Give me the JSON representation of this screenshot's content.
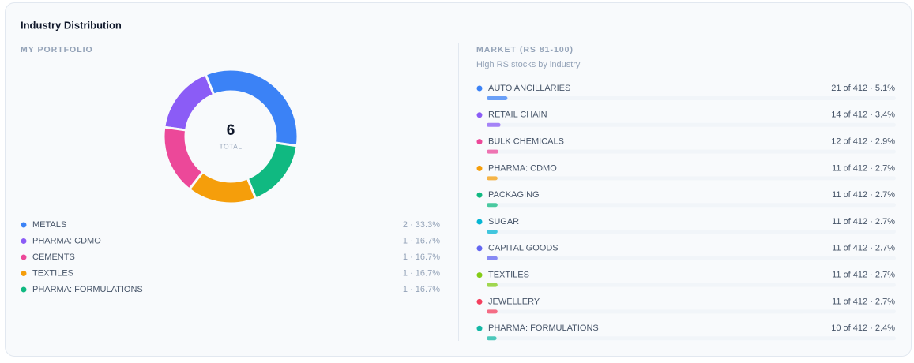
{
  "title": "Industry Distribution",
  "portfolio": {
    "heading": "MY PORTFOLIO",
    "total": 6,
    "total_label": "TOTAL",
    "items": [
      {
        "name": "METALS",
        "color": "#3b82f6",
        "count": 2,
        "label": "2 · 33.3%"
      },
      {
        "name": "PHARMA: CDMO",
        "color": "#8b5cf6",
        "count": 1,
        "label": "1 · 16.7%"
      },
      {
        "name": "CEMENTS",
        "color": "#ec4899",
        "count": 1,
        "label": "1 · 16.7%"
      },
      {
        "name": "TEXTILES",
        "color": "#f59e0b",
        "count": 1,
        "label": "1 · 16.7%"
      },
      {
        "name": "PHARMA: FORMULATIONS",
        "color": "#10b981",
        "count": 1,
        "label": "1 · 16.7%"
      }
    ]
  },
  "market": {
    "heading": "MARKET (RS 81-100)",
    "subtitle": "High RS stocks by industry",
    "total": 412,
    "items": [
      {
        "name": "AUTO ANCILLARIES",
        "color": "#3b82f6",
        "count": 21,
        "label": "21 of 412 · 5.1%"
      },
      {
        "name": "RETAIL CHAIN",
        "color": "#8b5cf6",
        "count": 14,
        "label": "14 of 412 · 3.4%"
      },
      {
        "name": "BULK CHEMICALS",
        "color": "#ec4899",
        "count": 12,
        "label": "12 of 412 · 2.9%"
      },
      {
        "name": "PHARMA: CDMO",
        "color": "#f59e0b",
        "count": 11,
        "label": "11 of 412 · 2.7%"
      },
      {
        "name": "PACKAGING",
        "color": "#10b981",
        "count": 11,
        "label": "11 of 412 · 2.7%"
      },
      {
        "name": "SUGAR",
        "color": "#06b6d4",
        "count": 11,
        "label": "11 of 412 · 2.7%"
      },
      {
        "name": "CAPITAL GOODS",
        "color": "#6366f1",
        "count": 11,
        "label": "11 of 412 · 2.7%"
      },
      {
        "name": "TEXTILES",
        "color": "#84cc16",
        "count": 11,
        "label": "11 of 412 · 2.7%"
      },
      {
        "name": "JEWELLERY",
        "color": "#f43f5e",
        "count": 11,
        "label": "11 of 412 · 2.7%"
      },
      {
        "name": "PHARMA: FORMULATIONS",
        "color": "#14b8a6",
        "count": 10,
        "label": "10 of 412 · 2.4%"
      }
    ]
  }
}
